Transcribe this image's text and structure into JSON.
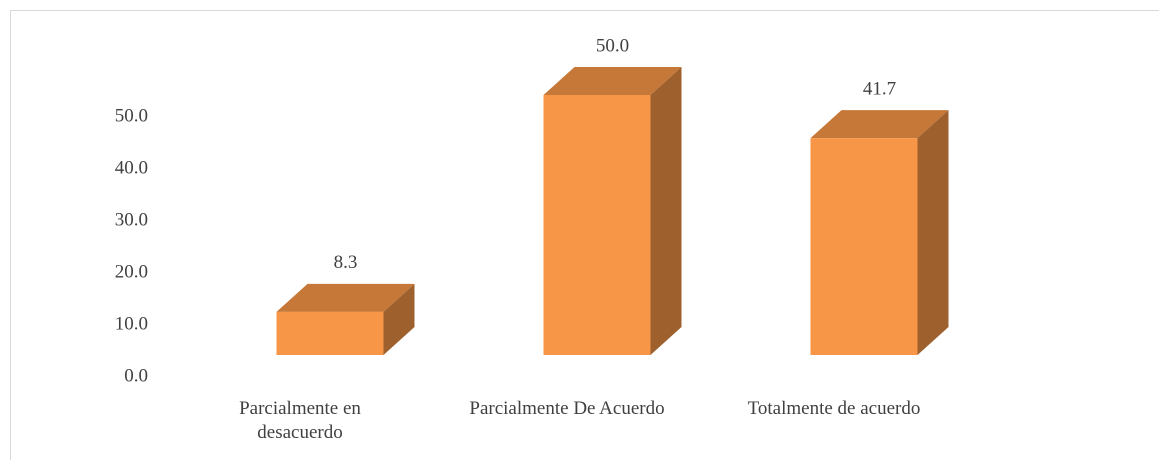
{
  "chart_data": {
    "type": "bar3d",
    "categories": [
      "Parcialmente en desacuerdo",
      "Parcialmente De Acuerdo",
      "Totalmente de acuerdo"
    ],
    "values": [
      8.3,
      50.0,
      41.7
    ],
    "value_labels": [
      "8.3",
      "50.0",
      "41.7"
    ],
    "color": "#f79646",
    "ylim": [
      0,
      50
    ],
    "yticks": [
      {
        "value": 0,
        "label": "0.0"
      },
      {
        "value": 10,
        "label": "10.0"
      },
      {
        "value": 20,
        "label": "20.0"
      },
      {
        "value": 30,
        "label": "30.0"
      },
      {
        "value": 40,
        "label": "40.0"
      },
      {
        "value": 50,
        "label": "50.0"
      }
    ]
  }
}
